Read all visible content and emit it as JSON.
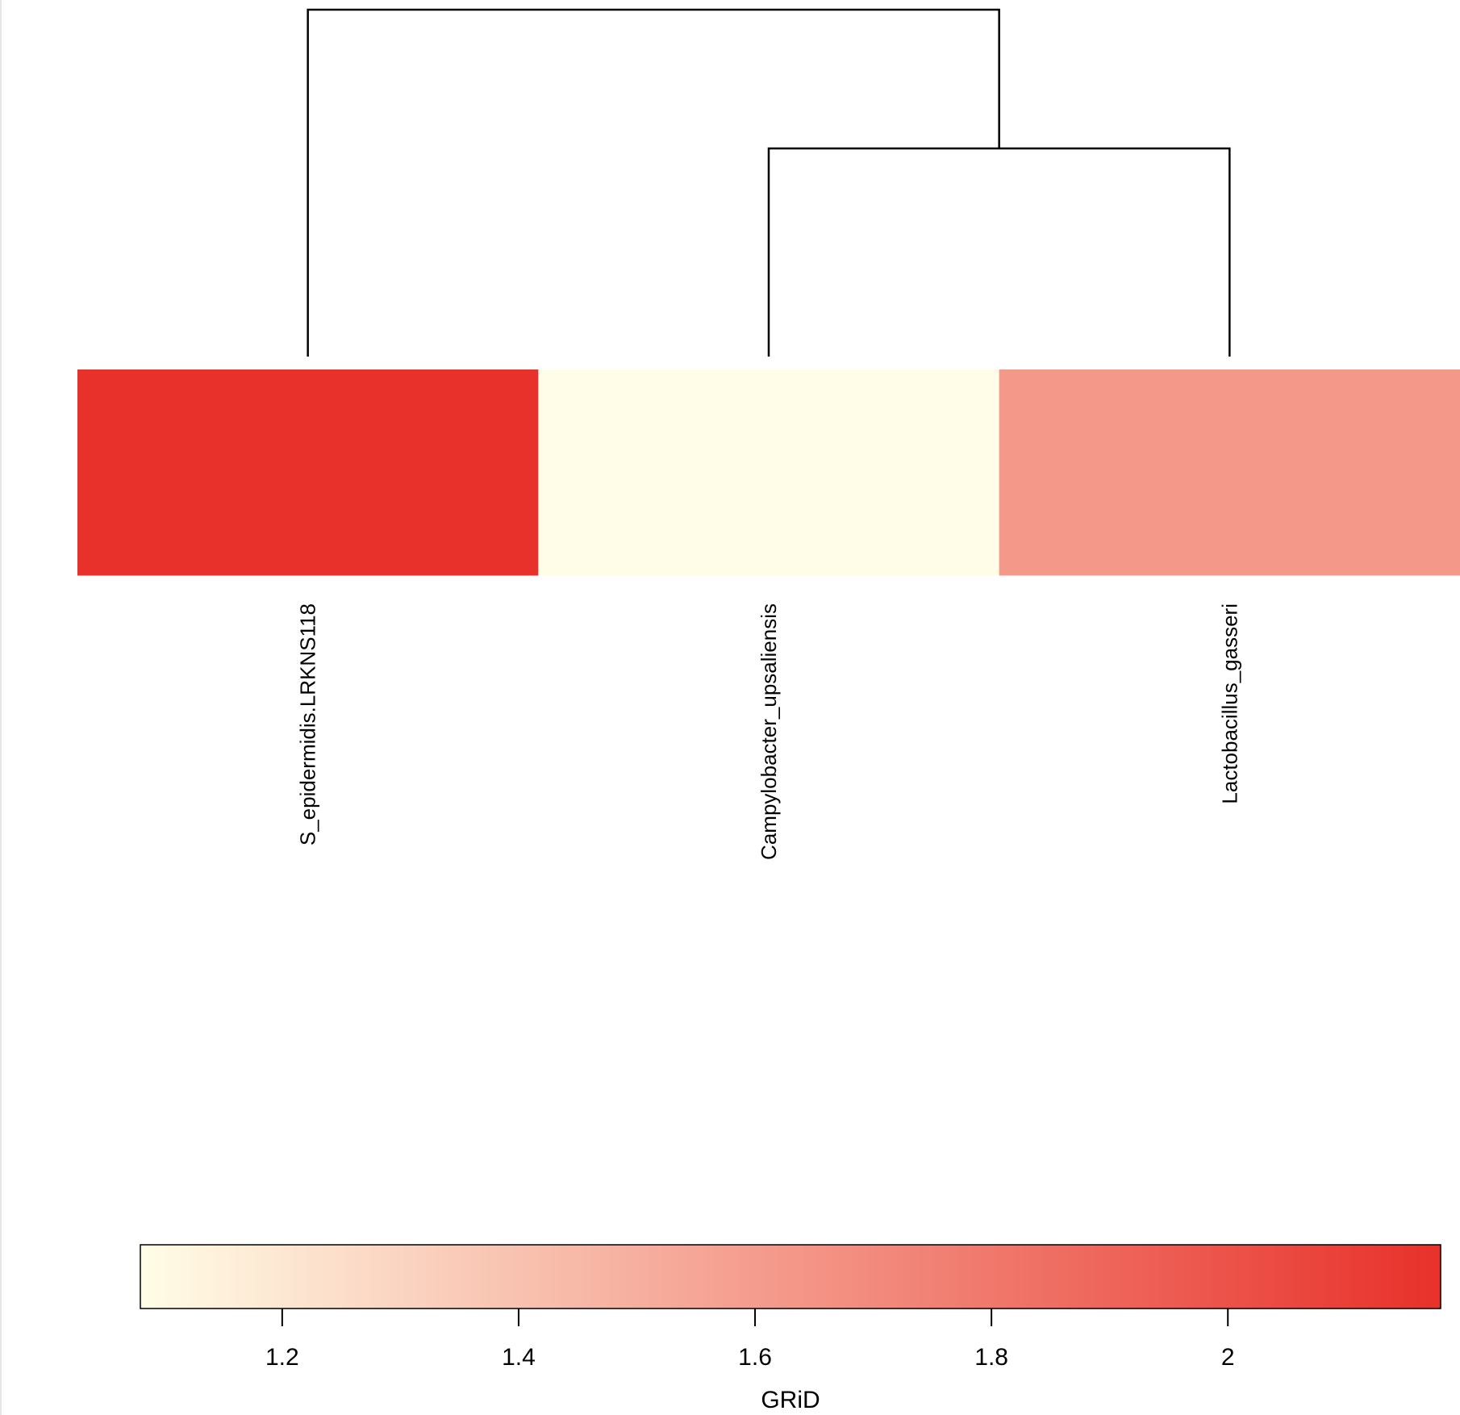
{
  "chart_data": {
    "type": "heatmap",
    "columns": [
      "S_epidermidis.LRKNS118",
      "Campylobacter_upsaliensis",
      "Lactobacillus_gasseri"
    ],
    "rows": 2,
    "values": [
      [
        2.18,
        1.08,
        1.62
      ],
      [
        2.18,
        1.08,
        1.62
      ]
    ],
    "dendrogram": {
      "merges": [
        {
          "left": "Campylobacter_upsaliensis",
          "right": "Lactobacillus_gasseri",
          "height": 0.6
        },
        {
          "left": "S_epidermidis.LRKNS118",
          "right": "cluster-1",
          "height": 1.0
        }
      ]
    },
    "colorbar": {
      "title": "GRiD",
      "range": [
        1.08,
        2.18
      ],
      "ticks": [
        1.2,
        1.4,
        1.6,
        1.8,
        2
      ],
      "tick_labels": [
        "1.2",
        "1.4",
        "1.6",
        "1.8",
        "2"
      ],
      "low_color": "#fffde7",
      "high_color": "#e8312a"
    }
  }
}
